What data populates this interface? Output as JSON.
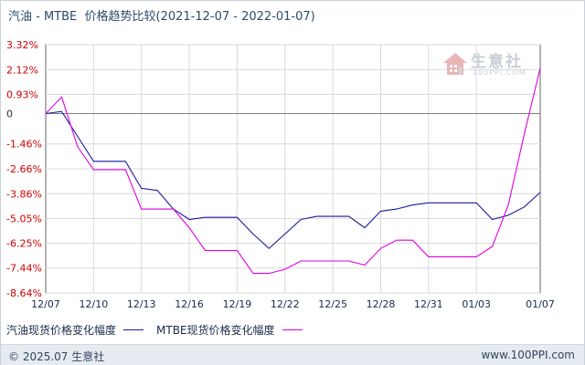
{
  "header": {
    "commodity_a": "汽油",
    "separator": " - ",
    "commodity_b": "MTBE",
    "title_suffix": "  价格趋势比较",
    "date_range": "(2021-12-07 - 2022-01-07)"
  },
  "watermark": {
    "brand": "生意社",
    "url": "100PPI.COM"
  },
  "footer": {
    "copyright": "© 2025.07 生意社",
    "site": "www.100PPI.com"
  },
  "colors": {
    "gasoline": "#1a1a99",
    "mtbe": "#e000e0",
    "positive_tick": "#cc0000",
    "negative_tick": "#cc0000",
    "zero_tick": "#333333",
    "grid": "#d9d9d9",
    "zero_line": "#808080",
    "axis": "#666666"
  },
  "chart_data": {
    "type": "line",
    "title": "",
    "xlabel": "",
    "ylabel": "",
    "ylim": [
      -8.64,
      3.32
    ],
    "y_ticks": [
      3.32,
      2.12,
      0.93,
      0,
      -1.46,
      -2.66,
      -3.86,
      -5.05,
      -6.25,
      -7.44,
      -8.64
    ],
    "y_tick_labels": [
      "3.32%",
      "2.12%",
      "0.93%",
      "0",
      "-1.46%",
      "-2.66%",
      "-3.86%",
      "-5.05%",
      "-6.25%",
      "-7.44%",
      "-8.64%"
    ],
    "x_ticks": [
      "12/07",
      "12/10",
      "12/13",
      "12/16",
      "12/19",
      "12/22",
      "12/25",
      "12/28",
      "12/31",
      "01/03",
      "01/07"
    ],
    "grid": true,
    "legend_position": "bottom-left",
    "series": [
      {
        "name": "汽油现货价格变化幅度",
        "color": "#1a1a99",
        "points": [
          [
            "12/07",
            0.0
          ],
          [
            "12/08",
            0.1
          ],
          [
            "12/09",
            -1.1
          ],
          [
            "12/10",
            -2.3
          ],
          [
            "12/11",
            -2.3
          ],
          [
            "12/12",
            -2.3
          ],
          [
            "12/13",
            -3.6
          ],
          [
            "12/14",
            -3.7
          ],
          [
            "12/15",
            -4.6
          ],
          [
            "12/16",
            -5.1
          ],
          [
            "12/17",
            -5.0
          ],
          [
            "12/18",
            -5.0
          ],
          [
            "12/19",
            -5.0
          ],
          [
            "12/20",
            -5.8
          ],
          [
            "12/21",
            -6.5
          ],
          [
            "12/22",
            -5.8
          ],
          [
            "12/23",
            -5.1
          ],
          [
            "12/24",
            -4.95
          ],
          [
            "12/25",
            -4.95
          ],
          [
            "12/26",
            -4.95
          ],
          [
            "12/27",
            -5.5
          ],
          [
            "12/28",
            -4.7
          ],
          [
            "12/29",
            -4.6
          ],
          [
            "12/30",
            -4.4
          ],
          [
            "12/31",
            -4.3
          ],
          [
            "01/01",
            -4.3
          ],
          [
            "01/02",
            -4.3
          ],
          [
            "01/03",
            -4.3
          ],
          [
            "01/04",
            -5.1
          ],
          [
            "01/05",
            -4.9
          ],
          [
            "01/06",
            -4.5
          ],
          [
            "01/07",
            -3.8
          ]
        ]
      },
      {
        "name": "MTBE现货价格变化幅度",
        "color": "#e000e0",
        "points": [
          [
            "12/07",
            0.0
          ],
          [
            "12/08",
            0.8
          ],
          [
            "12/09",
            -1.6
          ],
          [
            "12/10",
            -2.7
          ],
          [
            "12/11",
            -2.7
          ],
          [
            "12/12",
            -2.7
          ],
          [
            "12/13",
            -4.6
          ],
          [
            "12/14",
            -4.6
          ],
          [
            "12/15",
            -4.6
          ],
          [
            "12/16",
            -5.5
          ],
          [
            "12/17",
            -6.6
          ],
          [
            "12/18",
            -6.6
          ],
          [
            "12/19",
            -6.6
          ],
          [
            "12/20",
            -7.7
          ],
          [
            "12/21",
            -7.7
          ],
          [
            "12/22",
            -7.5
          ],
          [
            "12/23",
            -7.1
          ],
          [
            "12/24",
            -7.1
          ],
          [
            "12/25",
            -7.1
          ],
          [
            "12/26",
            -7.1
          ],
          [
            "12/27",
            -7.3
          ],
          [
            "12/28",
            -6.5
          ],
          [
            "12/29",
            -6.1
          ],
          [
            "12/30",
            -6.1
          ],
          [
            "12/31",
            -6.9
          ],
          [
            "01/01",
            -6.9
          ],
          [
            "01/02",
            -6.9
          ],
          [
            "01/03",
            -6.9
          ],
          [
            "01/04",
            -6.4
          ],
          [
            "01/05",
            -4.4
          ],
          [
            "01/06",
            -1.0
          ],
          [
            "01/07",
            2.2
          ]
        ]
      }
    ]
  }
}
